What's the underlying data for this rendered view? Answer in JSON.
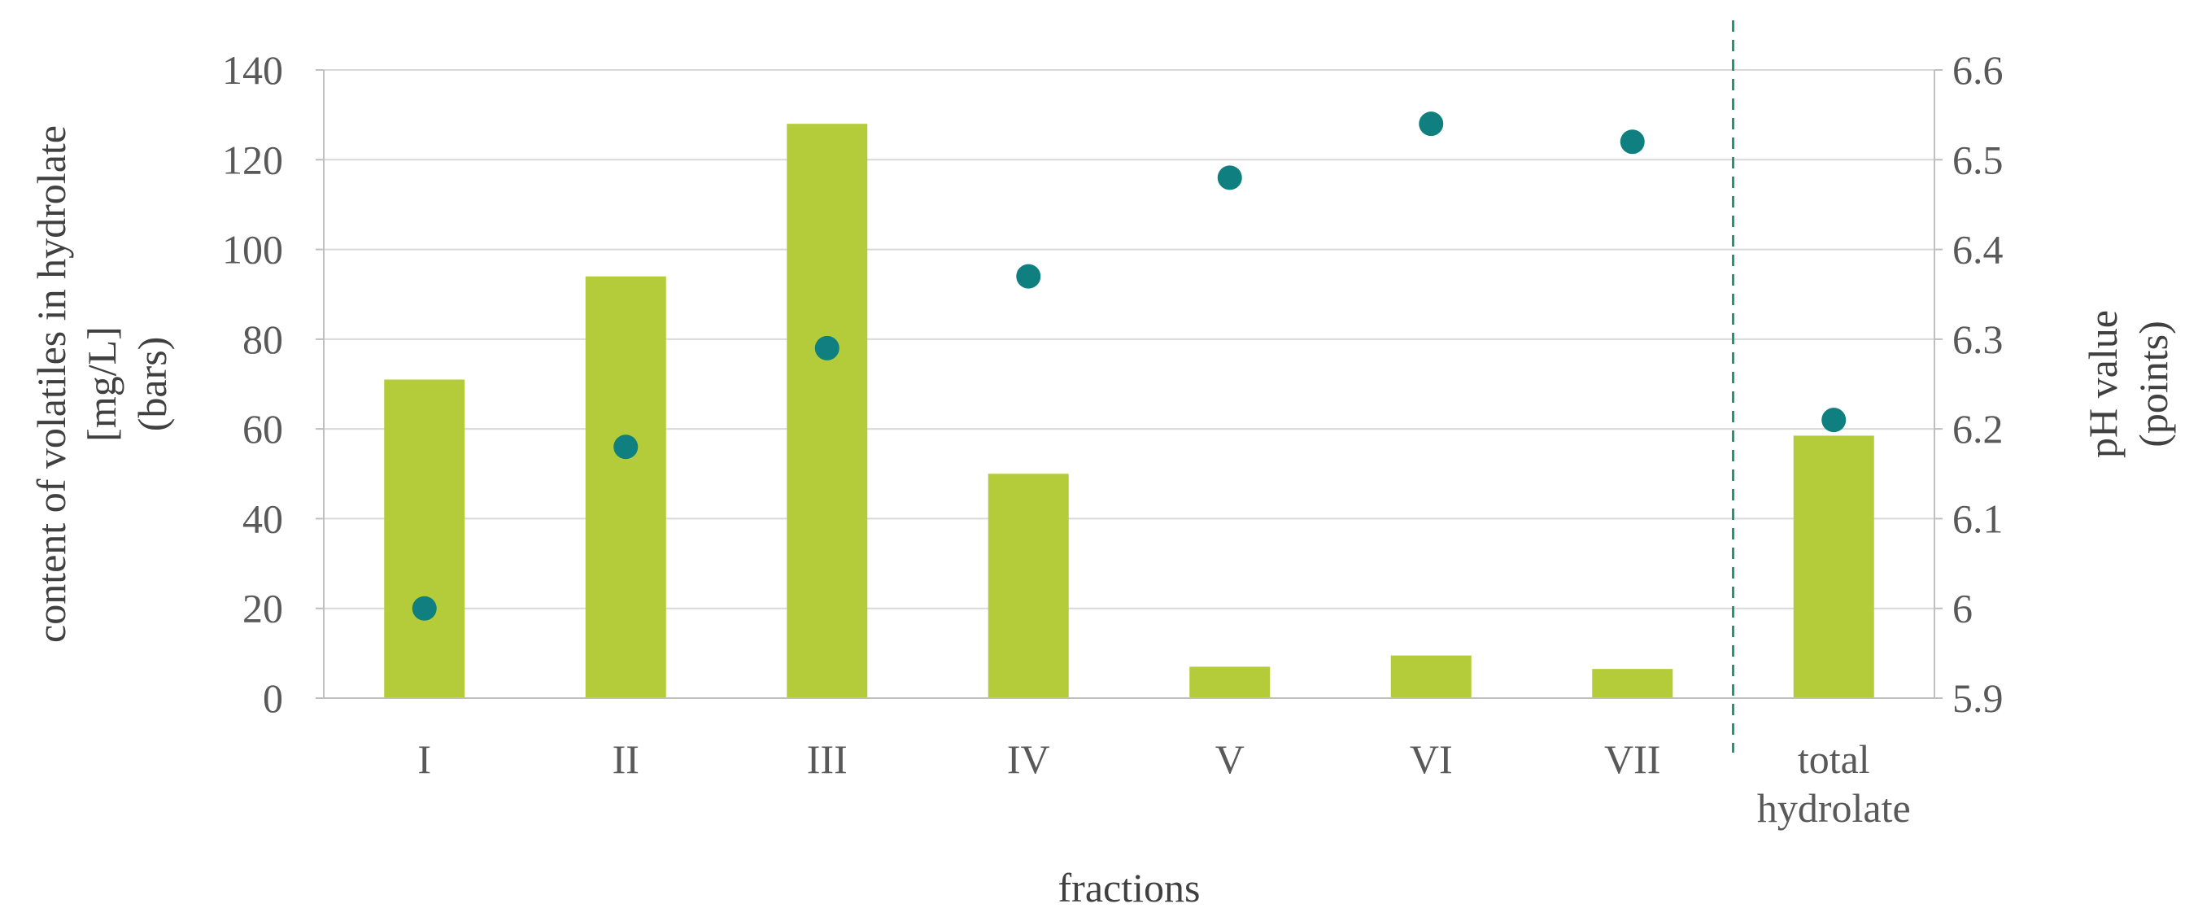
{
  "chart_data": {
    "type": "bar",
    "categories": [
      "I",
      "II",
      "III",
      "IV",
      "V",
      "VI",
      "VII",
      "total\nhydrolate"
    ],
    "xlabel": "fractions",
    "ylabel": [
      "content of volatiles in hydrolate",
      "[mg/L]",
      "(bars)"
    ],
    "y2label": [
      "pH value",
      "(points)"
    ],
    "ylim": [
      0,
      140
    ],
    "yticks": [
      0,
      20,
      40,
      60,
      80,
      100,
      120,
      140
    ],
    "y2lim": [
      5.9,
      6.6
    ],
    "y2ticks": [
      "5.9",
      "6",
      "6.1",
      "6.2",
      "6.3",
      "6.4",
      "6.5",
      "6.6"
    ],
    "grid": true,
    "separator_after_category": "VII",
    "series": [
      {
        "kind": "bar",
        "axis": "left",
        "color": "#b5cc3a",
        "values": [
          71,
          94,
          128,
          50,
          7,
          9.5,
          6.5,
          58.5
        ]
      },
      {
        "kind": "scatter",
        "axis": "right",
        "color": "#0f7f7f",
        "values": [
          6.0,
          6.18,
          6.29,
          6.37,
          6.48,
          6.54,
          6.52,
          6.21
        ]
      }
    ],
    "colors": {
      "grid": "#d9d9d9",
      "axis": "#bfbfbf",
      "separator": "#1f9a6d"
    }
  }
}
